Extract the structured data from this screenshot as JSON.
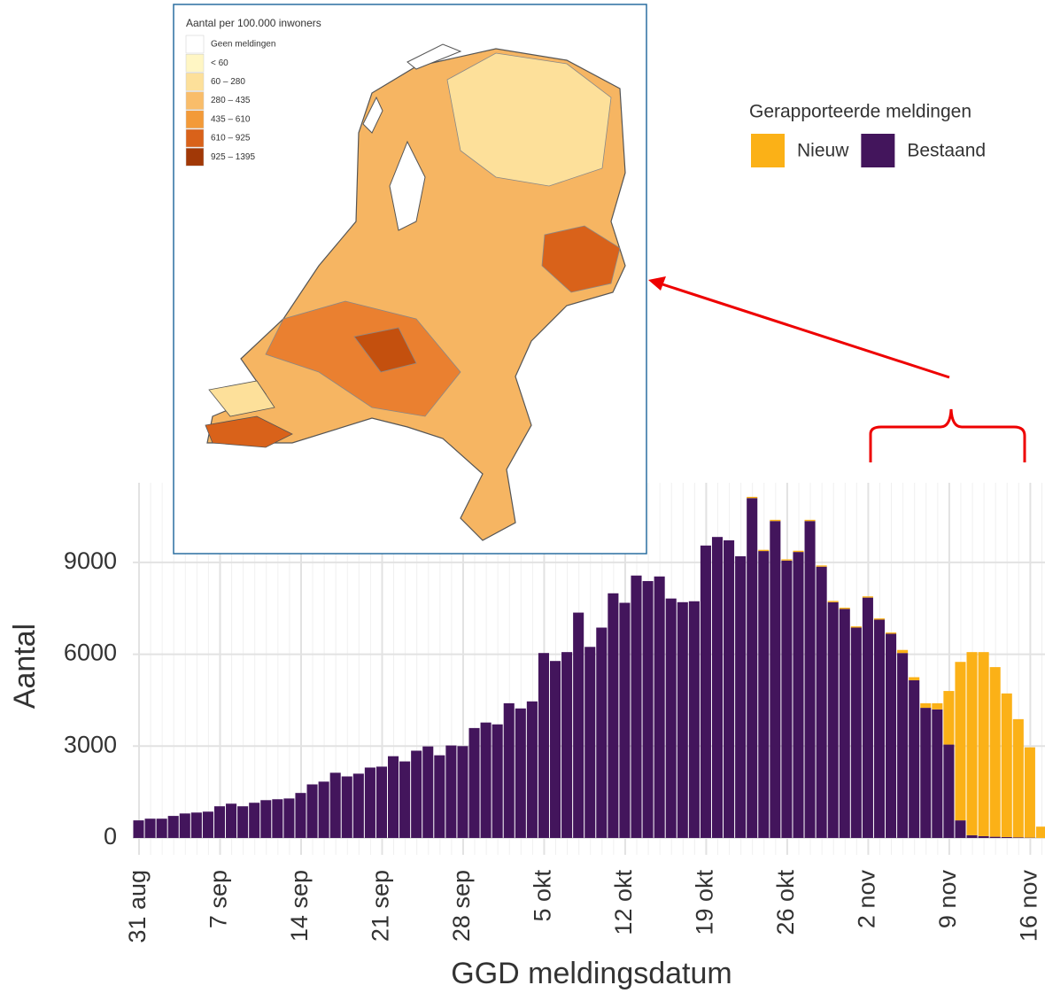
{
  "chart_data": {
    "type": "stacked_bar",
    "x_label": "GGD meldingsdatum",
    "y_label": "Aantal",
    "legend_title": "Gerapporteerde meldingen",
    "categories": [
      "31 aug",
      null,
      null,
      null,
      null,
      null,
      null,
      "7 sep",
      null,
      null,
      null,
      null,
      null,
      null,
      "14 sep",
      null,
      null,
      null,
      null,
      null,
      null,
      "21 sep",
      null,
      null,
      null,
      null,
      null,
      null,
      "28 sep",
      null,
      null,
      null,
      null,
      null,
      null,
      "5 okt",
      null,
      null,
      null,
      null,
      null,
      null,
      "12 okt",
      null,
      null,
      null,
      null,
      null,
      null,
      "19 okt",
      null,
      null,
      null,
      null,
      null,
      null,
      "26 okt",
      null,
      null,
      null,
      null,
      null,
      null,
      "2 nov",
      null,
      null,
      null,
      null,
      null,
      null,
      "9 nov",
      null,
      null,
      null,
      null,
      null,
      null,
      "16 nov",
      null
    ],
    "series": [
      {
        "name": "Nieuw",
        "color": "#fbb117",
        "values": [
          0,
          0,
          0,
          0,
          0,
          0,
          0,
          0,
          0,
          0,
          0,
          0,
          0,
          0,
          0,
          0,
          0,
          0,
          0,
          0,
          0,
          0,
          0,
          0,
          0,
          0,
          0,
          0,
          0,
          0,
          0,
          0,
          0,
          0,
          0,
          0,
          0,
          0,
          0,
          0,
          0,
          0,
          0,
          0,
          0,
          0,
          0,
          0,
          0,
          0,
          0,
          0,
          0,
          40,
          40,
          40,
          40,
          40,
          40,
          40,
          40,
          40,
          40,
          40,
          40,
          40,
          100,
          100,
          150,
          200,
          1750,
          5175,
          5980,
          6010,
          5540,
          4690,
          3860,
          2950,
          370
        ]
      },
      {
        "name": "Bestaand",
        "color": "#43155c",
        "values": [
          575,
          630,
          630,
          720,
          800,
          830,
          860,
          1035,
          1120,
          1035,
          1150,
          1235,
          1265,
          1290,
          1470,
          1750,
          1840,
          2130,
          2010,
          2100,
          2300,
          2330,
          2670,
          2500,
          2850,
          2990,
          2700,
          3020,
          3000,
          3590,
          3770,
          3710,
          4400,
          4230,
          4460,
          6040,
          5780,
          6070,
          7360,
          6240,
          6870,
          7990,
          7680,
          8570,
          8390,
          8540,
          7820,
          7700,
          7730,
          9550,
          9830,
          9720,
          9200,
          11100,
          9370,
          10350,
          9060,
          9340,
          10350,
          8860,
          7700,
          7480,
          6870,
          7850,
          7130,
          6670,
          6040,
          5150,
          4250,
          4200,
          3050,
          575,
          90,
          60,
          40,
          30,
          20,
          10,
          0
        ]
      }
    ],
    "ylim": [
      -550,
      11600
    ],
    "yticks": [
      0,
      3000,
      6000,
      9000
    ],
    "grid": true
  },
  "map": {
    "title": "Aantal per 100.000 inwoners",
    "legend": [
      {
        "label": "Geen meldingen",
        "color": "#ffffff"
      },
      {
        "label": "< 60",
        "color": "#fff6c4"
      },
      {
        "label": "60 – 280",
        "color": "#fde09a"
      },
      {
        "label": "280 – 435",
        "color": "#f9bd6a"
      },
      {
        "label": "435 – 610",
        "color": "#f39a38"
      },
      {
        "label": "610 – 925",
        "color": "#d9621a"
      },
      {
        "label": "925 – 1395",
        "color": "#a13806"
      }
    ]
  }
}
